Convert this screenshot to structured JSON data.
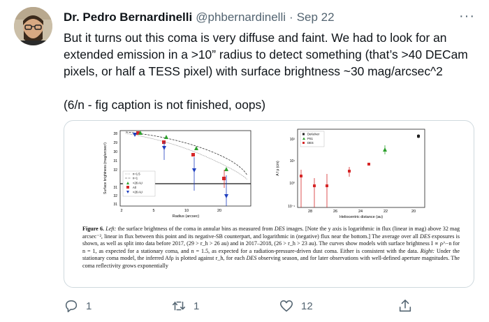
{
  "tweet": {
    "author_name": "Dr. Pedro Bernardinelli",
    "author_handle": "@phbernardinelli",
    "separator": "·",
    "date": "Sep 22",
    "more_label": "···",
    "lines": [
      "But it turns out this coma is very diffuse and faint. We had to look for an",
      "extended emission in a >10” radius to detect something (that’s >40 DECam",
      "pixels, or half a TESS pixel) with surface brightness ~30 mag/arcsec^2"
    ],
    "line2": "(6/n - fig caption is not finished, oops)"
  },
  "figure": {
    "left": {
      "ylabel": "Surface brightness (mag/arcsec²)",
      "xlabel": "Radius (arcsec)",
      "yticks": [
        "28",
        "29",
        "30",
        "31",
        "32",
        "31",
        "32",
        "31"
      ],
      "xticks": [
        "2",
        "5",
        "10",
        "20"
      ],
      "legend": [
        "n=1.5",
        "n=1",
        "<26 AU",
        "All",
        ">26 AU"
      ]
    },
    "right": {
      "ylabel": "A f ρ (cm)",
      "xlabel": "Heliocentric distance (au)",
      "yticks": [
        "10²",
        "10¹",
        "10⁰",
        "10⁻¹"
      ],
      "xticks": [
        "28",
        "26",
        "24",
        "22",
        "20"
      ],
      "legend": [
        "DeKelver",
        "PS1",
        "DES"
      ]
    },
    "caption_label": "Figure 6.",
    "caption_left": "Left:",
    "caption_text1": " the surface brightness of the coma in annular bins as measured from ",
    "caption_des1": "DES",
    "caption_text2": " images. [Note the y axis is logarithmic in flux (linear in mag) above 32 mag arcsec⁻², linear in flux between this point and its negative-SB counterpart, and logarithmic in (negative) flux near the bottom.] The average over all ",
    "caption_des2": "DES",
    "caption_text3": " exposures is shown, as well as split into data before 2017, (29 > r_h > 26 au) and in 2017–2018, (26 > r_h > 23 au). The curves show models with surface brightness I ∝ ρ^−n for n = 1, as expected for a stationary coma, and n = 1.5, as expected for a radiation-pressure-driven dust coma. Either is consistent with the data. ",
    "caption_right": "Right:",
    "caption_text4": " Under the stationary coma model, the inferred Afρ is plotted against r_h, for each ",
    "caption_des3": "DES",
    "caption_text5": " observing season, and for later observations with well-defined aperture magnitudes. The coma reflectivity grows exponentially"
  },
  "actions": {
    "reply_count": "1",
    "retweet_count": "1",
    "like_count": "12"
  },
  "colors": {
    "text": "#0f1419",
    "muted": "#536471",
    "border": "#cfd9de",
    "des_red": "#d62728",
    "ps1_green": "#2ca02c",
    "blue": "#1f3fbf"
  }
}
